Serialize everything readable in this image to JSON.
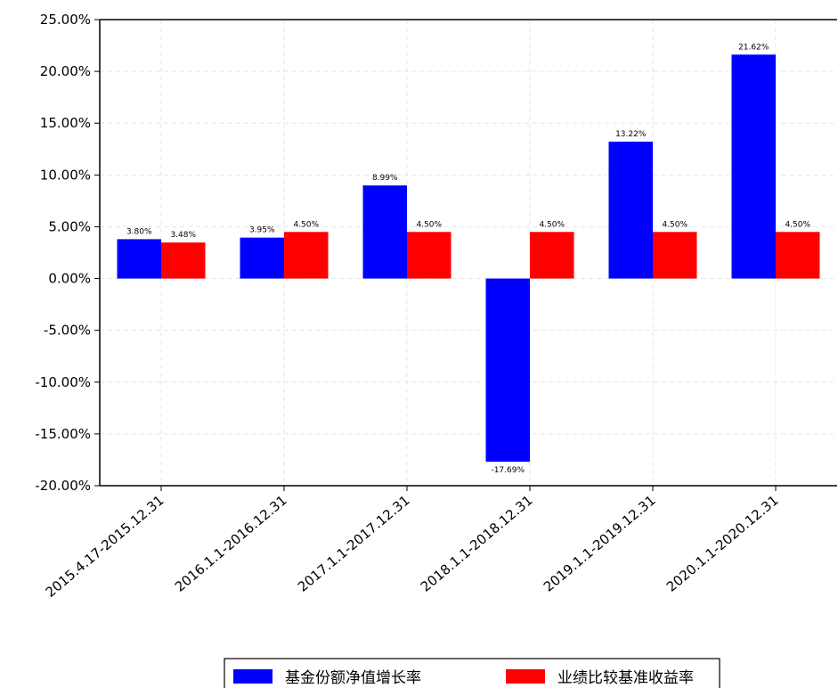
{
  "chart_data": {
    "type": "bar",
    "categories": [
      "2015.4.17-2015.12.31",
      "2016.1.1-2016.12.31",
      "2017.1.1-2017.12.31",
      "2018.1.1-2018.12.31",
      "2019.1.1-2019.12.31",
      "2020.1.1-2020.12.31"
    ],
    "series": [
      {
        "name": "基金份额净值增长率",
        "color": "#0000ff",
        "values": [
          3.8,
          3.95,
          8.99,
          -17.69,
          13.22,
          21.62
        ],
        "labels": [
          "3.80%",
          "3.95%",
          "8.99%",
          "-17.69%",
          "13.22%",
          "21.62%"
        ]
      },
      {
        "name": "业绩比较基准收益率",
        "color": "#ff0000",
        "values": [
          3.48,
          4.5,
          4.5,
          4.5,
          4.5,
          4.5
        ],
        "labels": [
          "3.48%",
          "4.50%",
          "4.50%",
          "4.50%",
          "4.50%",
          "4.50%"
        ]
      }
    ],
    "yticks": [
      {
        "value": 25,
        "label": "25.00%"
      },
      {
        "value": 20,
        "label": "20.00%"
      },
      {
        "value": 15,
        "label": "15.00%"
      },
      {
        "value": 10,
        "label": "10.00%"
      },
      {
        "value": 5,
        "label": "5.00%"
      },
      {
        "value": 0,
        "label": "0.00%"
      },
      {
        "value": -5,
        "label": "-5.00%"
      },
      {
        "value": -10,
        "label": "-10.00%"
      },
      {
        "value": -15,
        "label": "-15.00%"
      },
      {
        "value": -20,
        "label": "-20.00%"
      }
    ],
    "ylim": [
      -20,
      25
    ],
    "grid": true,
    "legend_position": "bottom"
  }
}
